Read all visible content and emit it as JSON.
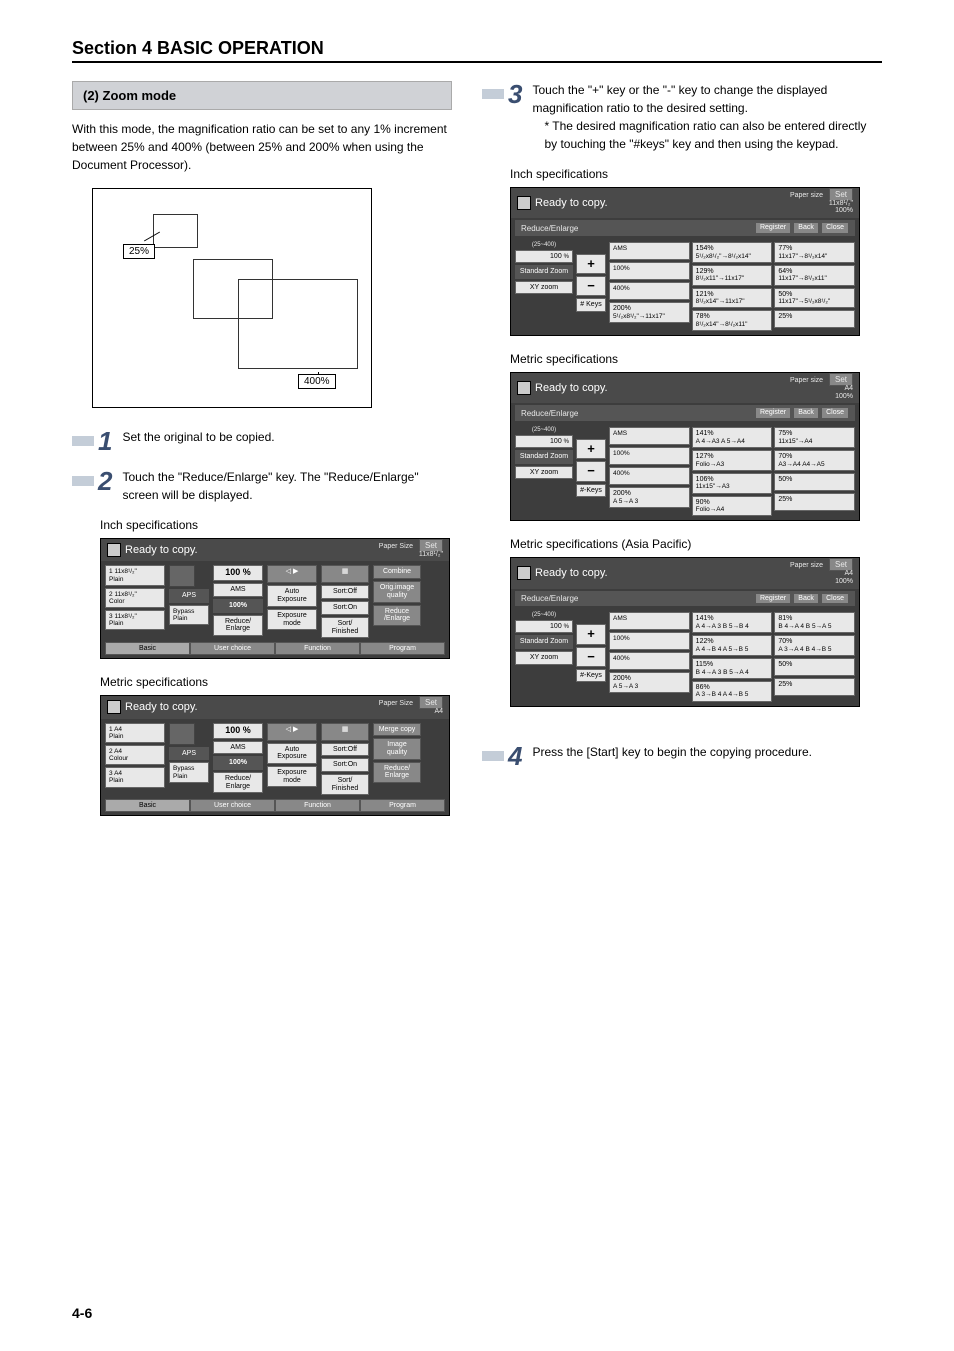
{
  "section_title": "Section 4  BASIC OPERATION",
  "sub_header": "(2) Zoom mode",
  "intro": "With this mode, the magnification ratio can be set to any 1% increment between 25% and 400% (between 25% and 200% when using the Document Processor).",
  "diagram": {
    "small": "25%",
    "large": "400%"
  },
  "step1": {
    "num": "1",
    "text": "Set the original to be copied."
  },
  "step2": {
    "num": "2",
    "text": "Touch the \"Reduce/Enlarge\" key. The \"Reduce/Enlarge\" screen will be displayed."
  },
  "step3": {
    "num": "3",
    "text": "Touch the \"+\" key or the \"-\" key to change the displayed magnification ratio to the desired setting.",
    "note": "* The desired magnification ratio can also be entered directly by touching the \"#keys\" key and then using the keypad."
  },
  "step4": {
    "num": "4",
    "text": "Press the [Start] key to begin the copying procedure."
  },
  "labels": {
    "inch_spec": "Inch specifications",
    "metric_spec": "Metric specifications",
    "metric_asia": "Metric specifications (Asia Pacific)"
  },
  "ready_panels": {
    "title": "Ready to copy.",
    "paper_size_label": "Paper Size",
    "set": "Set",
    "pct100": "100 %",
    "btn_aps": "APS",
    "btn_ams": "AMS",
    "btn_100": "100%",
    "btn_reduce_enlarge": "Reduce/​Enlarge",
    "btn_auto_exposure": "Auto​ Exposure",
    "btn_exposure_mode": "Exposure mode",
    "btn_sort_off": "Sort:Off",
    "btn_sort_on": "Sort:On",
    "btn_sort_finished": "Sort/​ Finished",
    "btn_combine": "Combine",
    "btn_orig_quality": "Orig.image quality",
    "btn_reduce_enlarge2": "Reduce /Enlarge",
    "btn_merge": "Merge copy",
    "btn_image_quality": "Image quality",
    "tab_basic": "Basic",
    "tab_user": "User choice",
    "tab_function": "Function",
    "tab_program": "Program",
    "tray_inch": [
      {
        "n": "1",
        "s": "11x8¹/₂\"",
        "t": "Plain"
      },
      {
        "n": "2",
        "s": "11x8¹/₂\"",
        "t": "Color"
      },
      {
        "n": "3",
        "s": "11x8¹/₂\"",
        "t": "Plain"
      }
    ],
    "tray_metric": [
      {
        "n": "1",
        "s": "A4",
        "t": "Plain"
      },
      {
        "n": "2",
        "s": "A4",
        "t": "Colour"
      },
      {
        "n": "3",
        "s": "A4",
        "t": "Plain"
      }
    ],
    "bypass": "Bypass Plain"
  },
  "zoom_panels": {
    "title": "Ready to copy.",
    "paper_size_label": "Paper size",
    "set": "Set",
    "reduce_enlarge": "Reduce/Enlarge",
    "register": "Register",
    "back": "Back",
    "close": "Close",
    "range": "(25~400)",
    "value": "100",
    "pct": "%",
    "std_zoom": "Standard Zoom",
    "xy_zoom": "XY zoom",
    "keys": "# Keys",
    "keys2": "#-Keys",
    "ams": "AMS",
    "p100": "100%",
    "p400": "400%",
    "p200": "200%",
    "paper_inch": "11x8¹/₂\"\n100%",
    "paper_metric": "A4\n100%",
    "inch_grid": {
      "c1": [
        {
          "p": "200%",
          "d": "5¹/₂x8¹/₂\"→11x17\""
        }
      ],
      "c2": [
        {
          "p": "154%",
          "d": "5¹/₂x8¹/₂\"→8¹/₂x14\""
        },
        {
          "p": "129%",
          "d": "8¹/₂x11\"→11x17\""
        },
        {
          "p": "121%",
          "d": "8¹/₂x14\"→11x17\""
        },
        {
          "p": "78%",
          "d": "8¹/₂x14\"→8¹/₂x11\""
        }
      ],
      "c3": [
        {
          "p": "77%",
          "d": "11x17\"→8¹/₂x14\""
        },
        {
          "p": "64%",
          "d": "11x17\"→8¹/₂x11\""
        },
        {
          "p": "50%",
          "d": "11x17\"→5¹/₂x8¹/₂\""
        },
        {
          "p": "25%",
          "d": ""
        }
      ]
    },
    "metric_grid": {
      "c1": [
        {
          "p": "200%",
          "d": "A 5→A 3"
        }
      ],
      "c2": [
        {
          "p": "141%",
          "d": "A 4→A3 A 5→A4"
        },
        {
          "p": "127%",
          "d": "Folio→A3"
        },
        {
          "p": "106%",
          "d": "11x15\"→A3"
        },
        {
          "p": "90%",
          "d": "Folio→A4"
        }
      ],
      "c3": [
        {
          "p": "75%",
          "d": "11x15\"→A4"
        },
        {
          "p": "70%",
          "d": "A3→A4 A4→A5"
        },
        {
          "p": "50%",
          "d": ""
        },
        {
          "p": "25%",
          "d": ""
        }
      ]
    },
    "asia_grid": {
      "c1": [
        {
          "p": "200%",
          "d": "A 5→A 3"
        }
      ],
      "c2": [
        {
          "p": "141%",
          "d": "A 4→A 3 B 5→B 4"
        },
        {
          "p": "122%",
          "d": "A 4→B 4 A 5→B 5"
        },
        {
          "p": "115%",
          "d": "B 4→A 3 B 5→A 4"
        },
        {
          "p": "86%",
          "d": "A 3→B 4 A 4→B 5"
        }
      ],
      "c3": [
        {
          "p": "81%",
          "d": "B 4→A 4 B 5→A 5"
        },
        {
          "p": "70%",
          "d": "A 3→A 4 B 4→B 5"
        },
        {
          "p": "50%",
          "d": ""
        },
        {
          "p": "25%",
          "d": ""
        }
      ]
    }
  },
  "page_num": "4-6"
}
